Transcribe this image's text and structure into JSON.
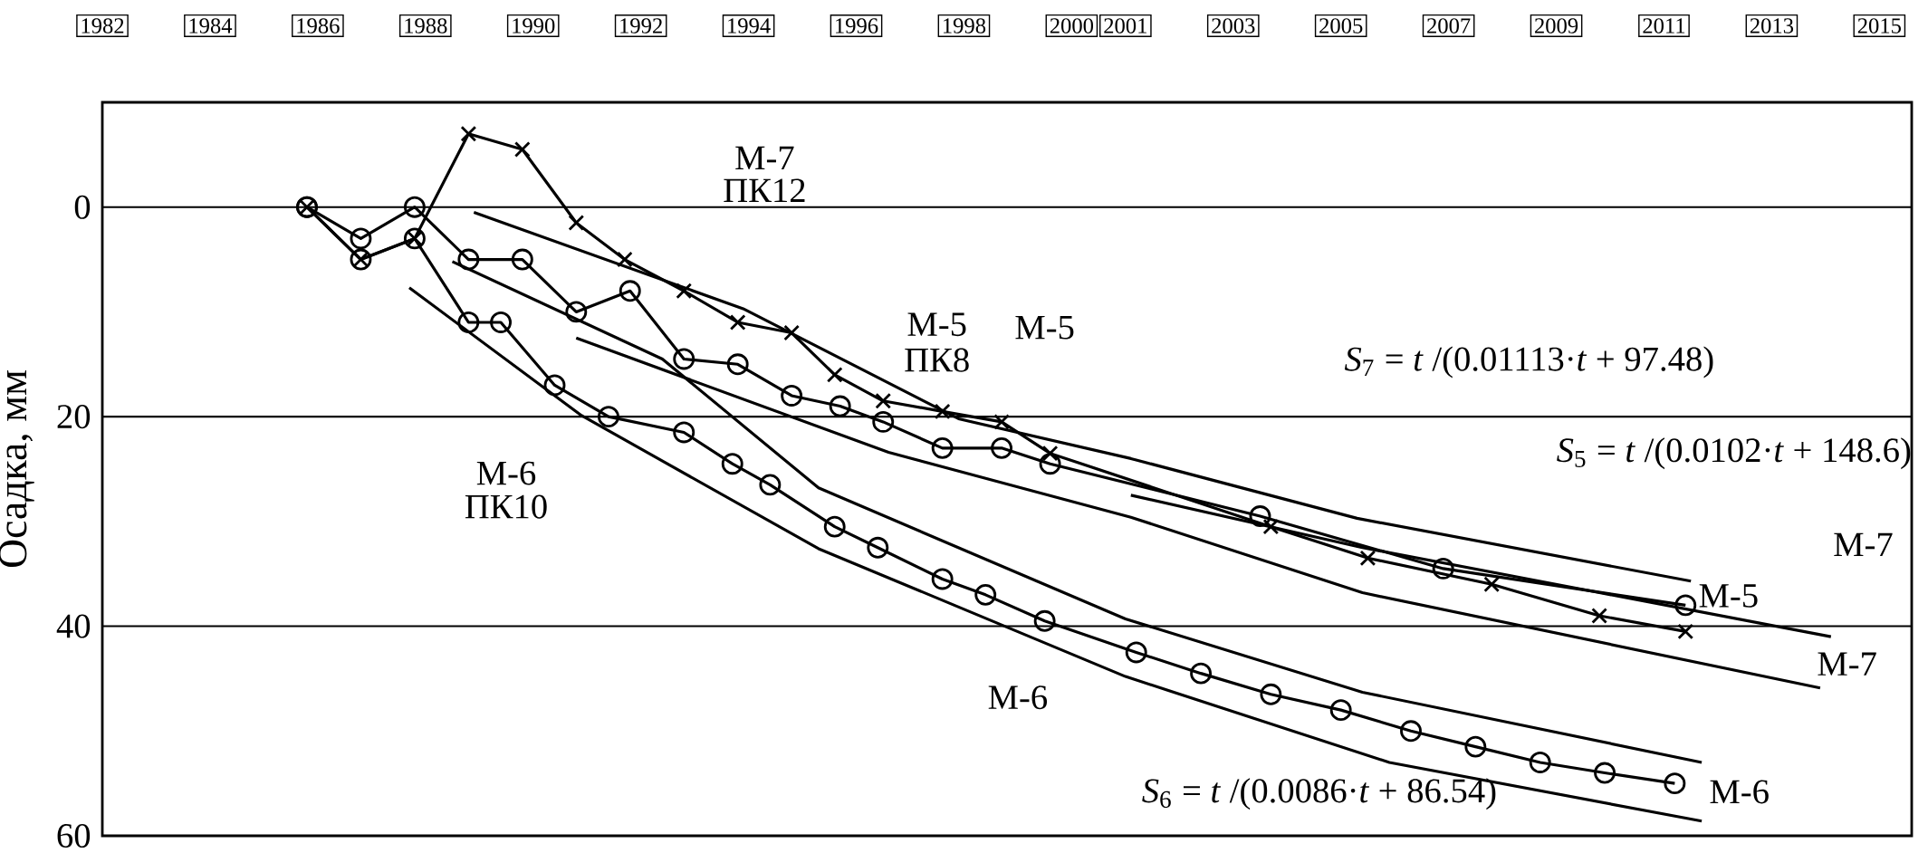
{
  "chart_data": {
    "type": "line",
    "ylabel": "Осадка, мм",
    "xlim": [
      1982,
      2015.6
    ],
    "xticks": [
      1982,
      1984,
      1986,
      1988,
      1990,
      1992,
      1994,
      1996,
      1998,
      2000,
      2001,
      2003,
      2005,
      2007,
      2009,
      2011,
      2013,
      2015
    ],
    "ylim": [
      60,
      -10
    ],
    "yticks": [
      0,
      20,
      40,
      60
    ],
    "grid": "y",
    "line_style": "solid",
    "series": [
      {
        "color": "#000000",
        "marker": "cross",
        "x": [
          1985.8,
          1986.8,
          1987.8,
          1988.8,
          1989.8,
          1990.8,
          1991.7,
          1992.8,
          1993.8,
          1994.8,
          1995.6,
          1996.5,
          1997.6,
          1998.7,
          1999.6,
          2003.7,
          2005.5,
          2007.8,
          2009.8,
          2011.4
        ],
        "values": [
          0,
          5,
          3,
          -7,
          -5.5,
          1.5,
          5,
          8,
          11,
          12,
          16,
          18.5,
          19.5,
          20.5,
          23.5,
          30.5,
          33.5,
          36,
          39,
          40.5
        ]
      },
      {
        "color": "#000000",
        "marker": "circle",
        "x": [
          1985.8,
          1986.8,
          1987.8,
          1988.8,
          1989.8,
          1990.8,
          1991.8,
          1992.8,
          1993.8,
          1994.8,
          1995.7,
          1996.5,
          1997.6,
          1998.7,
          1999.6,
          2003.5,
          2006.9,
          2011.4
        ],
        "values": [
          0,
          3,
          0,
          5,
          5,
          10,
          8,
          14.5,
          15,
          18,
          19,
          20.5,
          23,
          23,
          24.5,
          29.5,
          34.5,
          38
        ]
      },
      {
        "color": "#000000",
        "marker": "circle",
        "x": [
          1985.8,
          1986.8,
          1987.8,
          1988.8,
          1989.4,
          1990.4,
          1991.4,
          1992.8,
          1993.7,
          1994.4,
          1995.6,
          1996.4,
          1997.6,
          1998.4,
          1999.5,
          2001.2,
          2002.4,
          2003.7,
          2005.0,
          2006.3,
          2007.5,
          2008.7,
          2009.9,
          2011.2
        ],
        "values": [
          0,
          5,
          3,
          11,
          11,
          17,
          20,
          21.5,
          24.5,
          26.5,
          30.5,
          32.5,
          35.5,
          37,
          39.5,
          42.5,
          44.5,
          46.5,
          48,
          50,
          51.5,
          53,
          54,
          55
        ]
      },
      {
        "color": "#000000",
        "marker": "none",
        "x": [
          1988.9,
          1993.9,
          1997.9,
          2001.1,
          2005.3,
          2011.5
        ],
        "values": [
          0.5,
          9.7,
          20.2,
          24,
          29.7,
          35.7
        ]
      },
      {
        "color": "#000000",
        "marker": "none",
        "x": [
          1990.8,
          1996.6,
          1997.9,
          2001.1,
          2005.4,
          2013.9
        ],
        "values": [
          12.5,
          23.4,
          25.2,
          29.6,
          36.8,
          45.9
        ]
      },
      {
        "color": "#000000",
        "marker": "none",
        "x": [
          2001.1,
          2005.4,
          2009.5,
          2014.1
        ],
        "values": [
          27.5,
          32.5,
          36.5,
          41
        ]
      },
      {
        "color": "#000000",
        "marker": "none",
        "x": [
          1988.5,
          1992.4,
          1995.3,
          2001.0,
          2005.4,
          2011.7
        ],
        "values": [
          5.2,
          14.5,
          26.8,
          39.3,
          46.3,
          53
        ]
      },
      {
        "color": "#000000",
        "marker": "none",
        "x": [
          1987.7,
          1990.9,
          1995.3,
          2001.0,
          2005.9,
          2011.7
        ],
        "values": [
          7.7,
          19.9,
          32.6,
          44.8,
          53,
          58.6
        ]
      }
    ],
    "annotations": [
      "М-7",
      "ПК12",
      "М-5",
      "ПК8",
      "М-5",
      "М-6",
      "ПК10",
      "М-6",
      "*S*$_{7}$ = *t* /(0.01113·*t* + 97.48)",
      "*S*$_{5}$ = *t* /(0.0102·*t* + 148.6)",
      "*S*$_{6}$ = *t* /(0.0086·*t* + 86.54)",
      "М-7",
      "М-5",
      "М-7",
      "М-6"
    ]
  }
}
